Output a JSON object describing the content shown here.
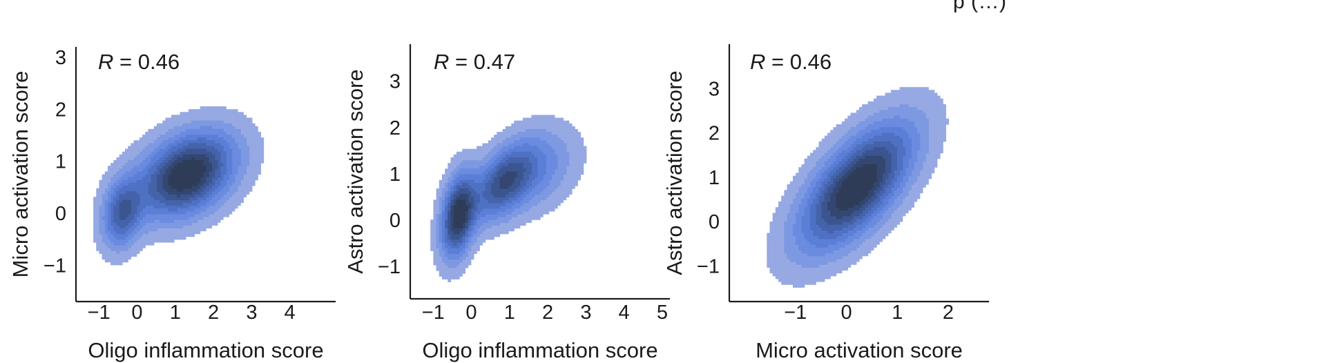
{
  "page": {
    "header_fragment": "p                     (…)"
  },
  "style": {
    "kde_colors": [
      "#96a9e3",
      "#7d99e2",
      "#6a8be0",
      "#5b7fd6",
      "#4f71c4",
      "#4563aa",
      "#3b5590",
      "#334771",
      "#2e3c58"
    ],
    "axis_color": "#1a1a1a"
  },
  "chart_data": [
    {
      "type": "kde-contour",
      "title": "",
      "annotation": {
        "label": "R",
        "text": " = 0.46",
        "value": 0.46
      },
      "xlabel": "Oligo inflammation score",
      "ylabel": "Micro activation score",
      "xlim": [
        -1.6,
        5.2
      ],
      "ylim": [
        -1.7,
        3.2
      ],
      "xticks": [
        -1,
        0,
        1,
        2,
        3,
        4
      ],
      "xtick_labels": [
        "−1",
        "0",
        "1",
        "2",
        "3",
        "4"
      ],
      "yticks": [
        -1,
        0,
        1,
        2,
        3
      ],
      "ytick_labels": [
        "−1",
        "0",
        "1",
        "2",
        "3"
      ],
      "modes": [
        {
          "x": 1.3,
          "y": 0.75,
          "sx": 0.85,
          "sy": 0.55,
          "rho": 0.35,
          "w": 1.0
        },
        {
          "x": -0.4,
          "y": 0.0,
          "sx": 0.35,
          "sy": 0.45,
          "rho": 0.2,
          "w": 0.6
        }
      ],
      "levels": 9
    },
    {
      "type": "kde-contour",
      "title": "",
      "annotation": {
        "label": "R",
        "text": " = 0.47",
        "value": 0.47
      },
      "xlabel": "Oligo inflammation score",
      "ylabel": "Astro activation score",
      "xlim": [
        -1.6,
        5.2
      ],
      "ylim": [
        -1.7,
        3.8
      ],
      "xticks": [
        -1,
        0,
        1,
        2,
        3,
        4,
        5
      ],
      "xtick_labels": [
        "−1",
        "0",
        "1",
        "2",
        "3",
        "4",
        "5"
      ],
      "yticks": [
        -1,
        0,
        1,
        2,
        3
      ],
      "ytick_labels": [
        "−1",
        "0",
        "1",
        "2",
        "3"
      ],
      "modes": [
        {
          "x": -0.35,
          "y": 0.1,
          "sx": 0.3,
          "sy": 0.6,
          "rho": 0.3,
          "w": 1.0
        },
        {
          "x": 0.8,
          "y": 0.8,
          "sx": 0.55,
          "sy": 0.55,
          "rho": 0.5,
          "w": 0.7
        },
        {
          "x": 1.7,
          "y": 1.1,
          "sx": 0.7,
          "sy": 0.6,
          "rho": 0.3,
          "w": 0.35
        }
      ],
      "levels": 9
    },
    {
      "type": "kde-contour",
      "title": "",
      "annotation": {
        "label": "R",
        "text": " = 0.46",
        "value": 0.46
      },
      "xlabel": "Micro activation score",
      "ylabel": "Astro activation score",
      "xlim": [
        -2.3,
        2.8
      ],
      "ylim": [
        -1.8,
        4.0
      ],
      "xticks": [
        -1,
        0,
        1,
        2
      ],
      "xtick_labels": [
        "−1",
        "0",
        "1",
        "2"
      ],
      "yticks": [
        -1,
        0,
        1,
        2,
        3
      ],
      "ytick_labels": [
        "−1",
        "0",
        "1",
        "2",
        "3"
      ],
      "modes": [
        {
          "x": 0.2,
          "y": 0.8,
          "sx": 0.75,
          "sy": 0.95,
          "rho": 0.65,
          "w": 1.0
        }
      ],
      "levels": 9
    }
  ]
}
